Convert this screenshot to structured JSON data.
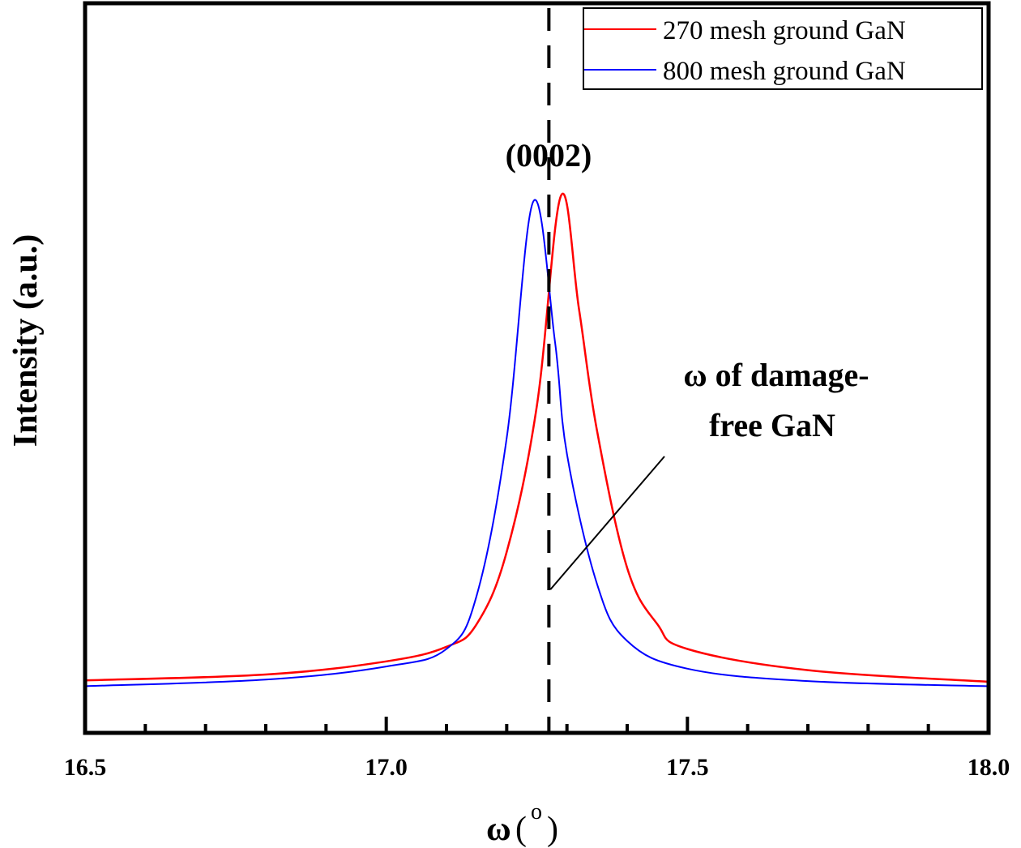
{
  "chart_data": {
    "type": "line",
    "title": "",
    "xlabel": "ω (°)",
    "xlabel_main": "ω",
    "xlabel_unit_open": "(",
    "xlabel_unit_sup": "o",
    "xlabel_unit_close": ")",
    "ylabel": "Intensity (a.u.)",
    "xlim": [
      16.5,
      18.0
    ],
    "ylim": [
      0,
      1
    ],
    "x_major_ticks": [
      16.5,
      17.0,
      17.5,
      18.0
    ],
    "x_tick_labels": [
      "16.5",
      "17.0",
      "17.5",
      "18.0"
    ],
    "x_minor_step": 0.1,
    "y_ticks_shown": false,
    "grid": false,
    "legend_position": "top-right",
    "series": [
      {
        "name": "270 mesh ground GaN",
        "color": "#ff0000",
        "x": [
          16.5,
          16.8,
          17.0,
          17.1,
          17.15,
          17.2,
          17.25,
          17.29,
          17.32,
          17.35,
          17.4,
          17.45,
          17.5,
          17.7,
          18.0
        ],
        "y": [
          0.072,
          0.08,
          0.098,
          0.118,
          0.149,
          0.248,
          0.448,
          0.736,
          0.581,
          0.414,
          0.226,
          0.149,
          0.115,
          0.086,
          0.07
        ]
      },
      {
        "name": "800 mesh ground GaN",
        "color": "#0000ff",
        "x": [
          16.5,
          16.8,
          17.0,
          17.1,
          17.15,
          17.2,
          17.244,
          17.28,
          17.3,
          17.35,
          17.4,
          17.5,
          17.7,
          18.0
        ],
        "y": [
          0.064,
          0.073,
          0.091,
          0.115,
          0.188,
          0.404,
          0.728,
          0.537,
          0.382,
          0.204,
          0.126,
          0.088,
          0.071,
          0.064
        ]
      }
    ],
    "reference_line": {
      "x": 17.27,
      "style": "dashed",
      "color": "#000000",
      "label": "ω of damage-free GaN"
    },
    "annotations": [
      {
        "text": "(0002)",
        "x": 17.27,
        "y": 0.79
      },
      {
        "text_line1": "ω of damage-",
        "text_line2": "free GaN",
        "x": 17.45,
        "y": 0.5
      }
    ]
  }
}
